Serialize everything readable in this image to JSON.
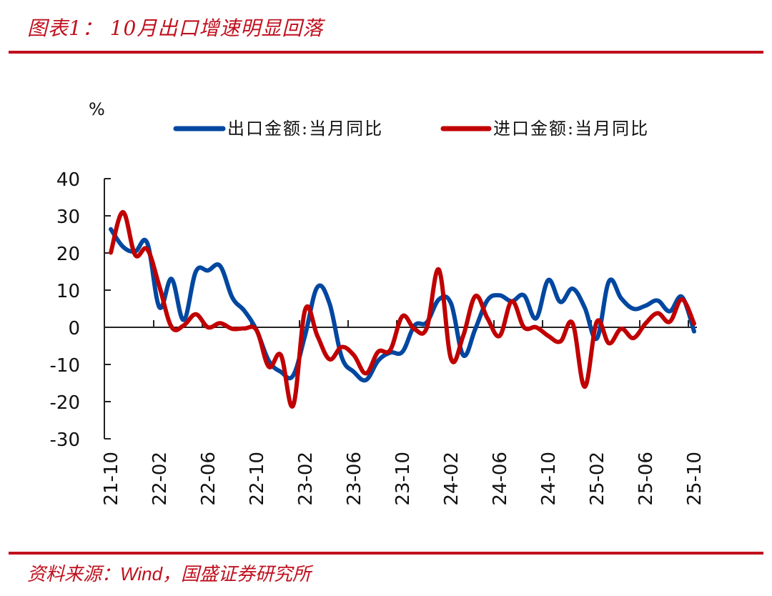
{
  "header": {
    "title": "图表1： 10月出口增速明显回落"
  },
  "footer": {
    "source_prefix": "资料来源：",
    "source_wind": "Wind",
    "source_suffix": "，国盛证券研究所"
  },
  "colors": {
    "accent": "#c0101e",
    "export_series": "#0047a0",
    "import_series": "#c00000",
    "axis": "#222222"
  },
  "chart_data": {
    "type": "line",
    "title": "10月出口增速明显回落",
    "ylabel": "%",
    "xlabel": "",
    "ylim": [
      -30,
      40
    ],
    "yticks": [
      40,
      30,
      20,
      10,
      0,
      -10,
      -20,
      -30
    ],
    "ytick_labels": [
      "40",
      "30",
      "20",
      "10",
      "0",
      "-10",
      "-20",
      "-30"
    ],
    "xtick_labels": [
      "21-10",
      "22-02",
      "22-06",
      "22-10",
      "23-02",
      "23-06",
      "23-10",
      "24-02",
      "24-06",
      "24-10",
      "25-02",
      "25-06",
      "25-10"
    ],
    "xtick_every": 4,
    "grid": false,
    "legend_position": "top",
    "x": [
      "21-10",
      "21-11",
      "21-12",
      "22-01",
      "22-02",
      "22-03",
      "22-04",
      "22-05",
      "22-06",
      "22-07",
      "22-08",
      "22-09",
      "22-10",
      "22-11",
      "22-12",
      "23-01",
      "23-02",
      "23-03",
      "23-04",
      "23-05",
      "23-06",
      "23-07",
      "23-08",
      "23-09",
      "23-10",
      "23-11",
      "23-12",
      "24-01",
      "24-02",
      "24-03",
      "24-04",
      "24-05",
      "24-06",
      "24-07",
      "24-08",
      "24-09",
      "24-10",
      "24-11",
      "24-12",
      "25-01",
      "25-02",
      "25-03",
      "25-04",
      "25-05",
      "25-06",
      "25-07",
      "25-08",
      "25-09",
      "25-10"
    ],
    "series": [
      {
        "name": "出口金额:当月同比",
        "color": "#0047a0",
        "values": [
          26.4,
          21.7,
          20.4,
          22.7,
          5.4,
          13.0,
          2.0,
          15.0,
          15.3,
          16.5,
          8.0,
          4.4,
          -0.8,
          -9.0,
          -12.0,
          -13.0,
          -2.0,
          10.8,
          6.4,
          -8.0,
          -12.0,
          -14.2,
          -9.0,
          -6.8,
          -6.6,
          0.5,
          1.3,
          7.5,
          6.4,
          -7.5,
          -0.4,
          7.3,
          8.6,
          7.0,
          8.6,
          2.4,
          12.7,
          6.8,
          10.4,
          5.3,
          -3.0,
          12.4,
          7.8,
          5.0,
          5.8,
          7.2,
          4.3,
          8.2,
          -1.1
        ]
      },
      {
        "name": "进口金额:当月同比",
        "color": "#c00000",
        "values": [
          20.1,
          31.0,
          19.5,
          21.0,
          11.0,
          0.1,
          0.5,
          3.5,
          0.0,
          1.1,
          -0.4,
          -0.3,
          -0.8,
          -10.6,
          -7.5,
          -21.1,
          4.8,
          -2.3,
          -8.6,
          -5.3,
          -7.5,
          -12.4,
          -6.6,
          -6.1,
          3.0,
          -0.5,
          -0.2,
          15.5,
          -8.5,
          -2.3,
          8.4,
          2.4,
          -2.3,
          7.0,
          0.0,
          0.0,
          -2.3,
          -3.8,
          1.1,
          -16.0,
          1.5,
          -4.3,
          -0.4,
          -2.9,
          1.0,
          3.8,
          1.5,
          7.5,
          1.0
        ]
      }
    ]
  }
}
